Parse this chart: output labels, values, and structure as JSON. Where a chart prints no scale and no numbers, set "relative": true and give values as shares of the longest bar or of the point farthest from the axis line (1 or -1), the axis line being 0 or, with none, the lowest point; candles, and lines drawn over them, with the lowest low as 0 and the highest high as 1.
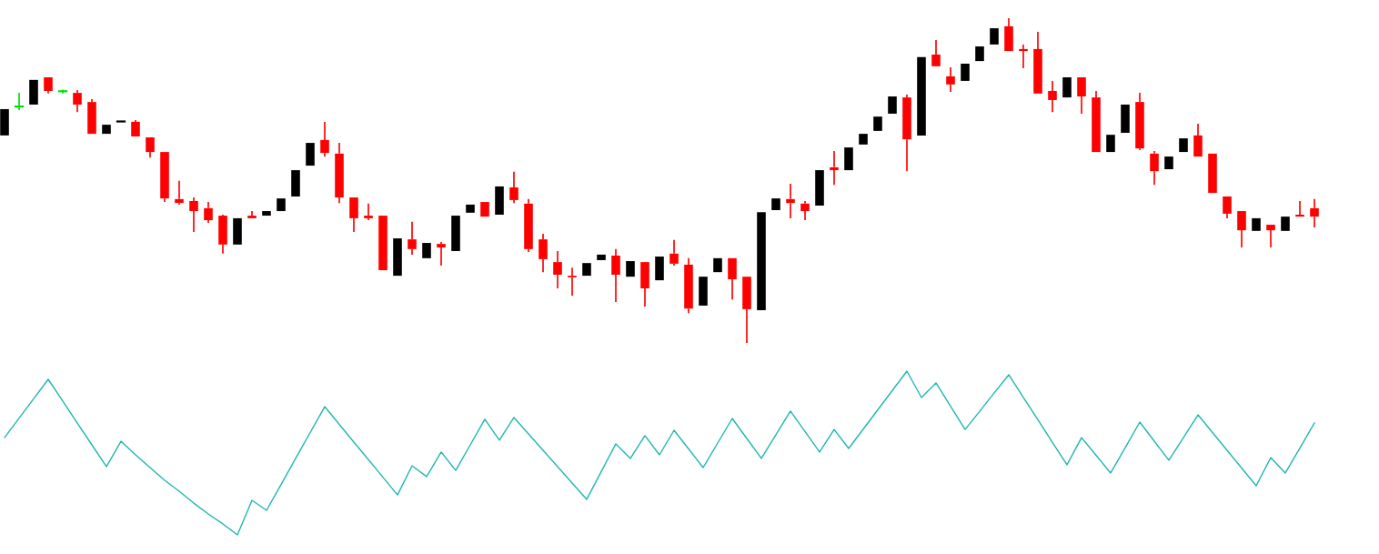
{
  "chart_data": [
    {
      "type": "candlestick",
      "relative": true,
      "categories": [
        null,
        null,
        null,
        null,
        null,
        null,
        null,
        null,
        null,
        null,
        null,
        null,
        null,
        null,
        null,
        null,
        null,
        null,
        null,
        null,
        null,
        null,
        null,
        null,
        null,
        null,
        null,
        null,
        null,
        null,
        null,
        null,
        null,
        null,
        null,
        null,
        null,
        null,
        null,
        null,
        null,
        null,
        null,
        null,
        null,
        null,
        null,
        null,
        null,
        null,
        null,
        null,
        null,
        null,
        null,
        null,
        null,
        null,
        null,
        null,
        null,
        null,
        null,
        null,
        null,
        null,
        null,
        null,
        null,
        null,
        null,
        null,
        null,
        null,
        null,
        null,
        null,
        null,
        null,
        null,
        null,
        null,
        null,
        null,
        null,
        null,
        null,
        null,
        null,
        null,
        null
      ],
      "ohlc": [
        [
          0.639,
          0.72,
          0.639,
          0.72
        ],
        [
          0.728,
          0.77,
          0.717,
          0.728
        ],
        [
          0.734,
          0.81,
          0.734,
          0.81
        ],
        [
          0.818,
          0.818,
          0.768,
          0.776
        ],
        [
          0.775,
          0.78,
          0.768,
          0.775
        ],
        [
          0.77,
          0.779,
          0.711,
          0.734
        ],
        [
          0.742,
          0.751,
          0.644,
          0.644
        ],
        [
          0.644,
          0.672,
          0.644,
          0.672
        ],
        [
          0.681,
          0.683,
          0.681,
          0.683
        ],
        [
          0.681,
          0.686,
          0.636,
          0.636
        ],
        [
          0.633,
          0.633,
          0.571,
          0.588
        ],
        [
          0.588,
          0.588,
          0.434,
          0.445
        ],
        [
          0.443,
          0.499,
          0.426,
          0.431
        ],
        [
          0.437,
          0.448,
          0.342,
          0.406
        ],
        [
          0.415,
          0.434,
          0.37,
          0.378
        ],
        [
          0.392,
          0.395,
          0.275,
          0.303
        ],
        [
          0.303,
          0.384,
          0.303,
          0.384
        ],
        [
          0.392,
          0.406,
          0.384,
          0.384
        ],
        [
          0.392,
          0.406,
          0.392,
          0.406
        ],
        [
          0.406,
          0.445,
          0.406,
          0.445
        ],
        [
          0.451,
          0.532,
          0.451,
          0.532
        ],
        [
          0.546,
          0.616,
          0.546,
          0.616
        ],
        [
          0.625,
          0.681,
          0.574,
          0.585
        ],
        [
          0.583,
          0.616,
          0.431,
          0.448
        ],
        [
          0.448,
          0.448,
          0.342,
          0.384
        ],
        [
          0.392,
          0.429,
          0.378,
          0.384
        ],
        [
          0.392,
          0.392,
          0.224,
          0.224
        ],
        [
          0.207,
          0.322,
          0.207,
          0.322
        ],
        [
          0.319,
          0.373,
          0.272,
          0.289
        ],
        [
          0.261,
          0.308,
          0.261,
          0.308
        ],
        [
          0.305,
          0.311,
          0.238,
          0.294
        ],
        [
          0.283,
          0.392,
          0.283,
          0.392
        ],
        [
          0.401,
          0.426,
          0.401,
          0.426
        ],
        [
          0.434,
          0.434,
          0.389,
          0.389
        ],
        [
          0.395,
          0.482,
          0.395,
          0.482
        ],
        [
          0.479,
          0.527,
          0.431,
          0.44
        ],
        [
          0.429,
          0.443,
          0.28,
          0.289
        ],
        [
          0.319,
          0.336,
          0.218,
          0.258
        ],
        [
          0.249,
          0.283,
          0.168,
          0.21
        ],
        [
          0.207,
          0.232,
          0.146,
          0.202
        ],
        [
          0.207,
          0.246,
          0.207,
          0.246
        ],
        [
          0.255,
          0.272,
          0.255,
          0.272
        ],
        [
          0.269,
          0.289,
          0.126,
          0.21
        ],
        [
          0.204,
          0.252,
          0.204,
          0.252
        ],
        [
          0.249,
          0.249,
          0.112,
          0.168
        ],
        [
          0.193,
          0.266,
          0.193,
          0.266
        ],
        [
          0.275,
          0.317,
          0.238,
          0.244
        ],
        [
          0.241,
          0.261,
          0.092,
          0.106
        ],
        [
          0.115,
          0.204,
          0.115,
          0.204
        ],
        [
          0.218,
          0.261,
          0.218,
          0.261
        ],
        [
          0.261,
          0.261,
          0.134,
          0.196
        ],
        [
          0.204,
          0.204,
          0.0,
          0.104
        ],
        [
          0.101,
          0.403,
          0.101,
          0.403
        ],
        [
          0.409,
          0.445,
          0.409,
          0.445
        ],
        [
          0.443,
          0.49,
          0.384,
          0.431
        ],
        [
          0.429,
          0.437,
          0.378,
          0.406
        ],
        [
          0.423,
          0.532,
          0.423,
          0.532
        ],
        [
          0.541,
          0.591,
          0.487,
          0.532
        ],
        [
          0.532,
          0.602,
          0.532,
          0.602
        ],
        [
          0.611,
          0.644,
          0.611,
          0.644
        ],
        [
          0.653,
          0.697,
          0.653,
          0.697
        ],
        [
          0.706,
          0.759,
          0.706,
          0.759
        ],
        [
          0.756,
          0.765,
          0.529,
          0.627
        ],
        [
          0.639,
          0.88,
          0.639,
          0.88
        ],
        [
          0.888,
          0.933,
          0.852,
          0.852
        ],
        [
          0.821,
          0.849,
          0.773,
          0.796
        ],
        [
          0.807,
          0.86,
          0.807,
          0.86
        ],
        [
          0.868,
          0.913,
          0.868,
          0.913
        ],
        [
          0.919,
          0.969,
          0.919,
          0.969
        ],
        [
          0.975,
          1.0,
          0.899,
          0.899
        ],
        [
          0.905,
          0.919,
          0.846,
          0.899
        ],
        [
          0.905,
          0.958,
          0.768,
          0.768
        ],
        [
          0.776,
          0.807,
          0.711,
          0.748
        ],
        [
          0.756,
          0.818,
          0.756,
          0.818
        ],
        [
          0.818,
          0.818,
          0.706,
          0.759
        ],
        [
          0.756,
          0.776,
          0.588,
          0.588
        ],
        [
          0.588,
          0.641,
          0.588,
          0.641
        ],
        [
          0.647,
          0.734,
          0.647,
          0.734
        ],
        [
          0.742,
          0.77,
          0.594,
          0.599
        ],
        [
          0.583,
          0.591,
          0.487,
          0.529
        ],
        [
          0.535,
          0.574,
          0.535,
          0.574
        ],
        [
          0.588,
          0.63,
          0.588,
          0.63
        ],
        [
          0.639,
          0.675,
          0.574,
          0.574
        ],
        [
          0.583,
          0.583,
          0.462,
          0.462
        ],
        [
          0.451,
          0.451,
          0.384,
          0.398
        ],
        [
          0.406,
          0.406,
          0.294,
          0.347
        ],
        [
          0.345,
          0.384,
          0.345,
          0.384
        ],
        [
          0.364,
          0.364,
          0.294,
          0.347
        ],
        [
          0.345,
          0.389,
          0.345,
          0.389
        ],
        [
          0.395,
          0.437,
          0.389,
          0.389
        ],
        [
          0.415,
          0.443,
          0.356,
          0.389
        ]
      ],
      "colors": [
        "#000000",
        "#00e000",
        "#000000",
        "#ff0000",
        "#00e000",
        "#ff0000",
        "#ff0000",
        "#000000",
        "#000000",
        "#ff0000",
        "#ff0000",
        "#ff0000",
        "#ff0000",
        "#ff0000",
        "#ff0000",
        "#ff0000",
        "#000000",
        "#ff0000",
        "#000000",
        "#000000",
        "#000000",
        "#000000",
        "#ff0000",
        "#ff0000",
        "#ff0000",
        "#ff0000",
        "#ff0000",
        "#000000",
        "#ff0000",
        "#000000",
        "#ff0000",
        "#000000",
        "#000000",
        "#ff0000",
        "#000000",
        "#ff0000",
        "#ff0000",
        "#ff0000",
        "#ff0000",
        "#ff0000",
        "#000000",
        "#000000",
        "#ff0000",
        "#000000",
        "#ff0000",
        "#000000",
        "#ff0000",
        "#ff0000",
        "#000000",
        "#000000",
        "#ff0000",
        "#ff0000",
        "#000000",
        "#000000",
        "#ff0000",
        "#ff0000",
        "#000000",
        "#ff0000",
        "#000000",
        "#000000",
        "#000000",
        "#000000",
        "#ff0000",
        "#000000",
        "#ff0000",
        "#ff0000",
        "#000000",
        "#000000",
        "#000000",
        "#ff0000",
        "#ff0000",
        "#ff0000",
        "#ff0000",
        "#000000",
        "#ff0000",
        "#ff0000",
        "#000000",
        "#000000",
        "#ff0000",
        "#ff0000",
        "#000000",
        "#000000",
        "#ff0000",
        "#ff0000",
        "#ff0000",
        "#ff0000",
        "#000000",
        "#ff0000",
        "#000000",
        "#ff0000",
        "#ff0000"
      ]
    },
    {
      "type": "line",
      "relative": true,
      "categories": [
        null,
        null,
        null,
        null,
        null,
        null,
        null,
        null,
        null,
        null,
        null,
        null,
        null,
        null,
        null,
        null,
        null,
        null,
        null,
        null,
        null,
        null,
        null,
        null,
        null,
        null,
        null,
        null,
        null,
        null,
        null,
        null,
        null,
        null,
        null,
        null,
        null,
        null,
        null,
        null,
        null,
        null,
        null,
        null,
        null,
        null,
        null,
        null,
        null,
        null,
        null,
        null,
        null,
        null,
        null,
        null,
        null,
        null,
        null,
        null,
        null,
        null,
        null,
        null,
        null,
        null,
        null,
        null,
        null,
        null,
        null,
        null,
        null,
        null,
        null,
        null,
        null,
        null,
        null,
        null,
        null,
        null,
        null,
        null,
        null,
        null,
        null,
        null,
        null,
        null,
        null
      ],
      "series": [
        {
          "color": "#1fb5b0",
          "values": [
            0.594,
            0.713,
            0.831,
            0.95,
            0.817,
            0.683,
            0.55,
            0.417,
            0.572,
            0.489,
            0.411,
            0.333,
            0.267,
            0.194,
            0.128,
            0.067,
            0.0,
            0.211,
            0.15,
            0.308,
            0.467,
            0.625,
            0.783,
            0.675,
            0.567,
            0.46,
            0.352,
            0.244,
            0.422,
            0.356,
            0.506,
            0.394,
            0.55,
            0.706,
            0.578,
            0.717,
            0.617,
            0.517,
            0.417,
            0.317,
            0.217,
            0.387,
            0.556,
            0.467,
            0.606,
            0.489,
            0.639,
            0.525,
            0.411,
            0.561,
            0.711,
            0.589,
            0.467,
            0.612,
            0.756,
            0.631,
            0.506,
            0.644,
            0.528,
            0.646,
            0.764,
            0.882,
            1.0,
            0.839,
            0.928,
            0.786,
            0.644,
            0.755,
            0.867,
            0.978,
            0.84,
            0.703,
            0.565,
            0.428,
            0.594,
            0.486,
            0.378,
            0.533,
            0.689,
            0.572,
            0.456,
            0.594,
            0.733,
            0.625,
            0.517,
            0.408,
            0.3,
            0.472,
            0.378,
            0.53,
            0.683
          ]
        }
      ]
    }
  ]
}
